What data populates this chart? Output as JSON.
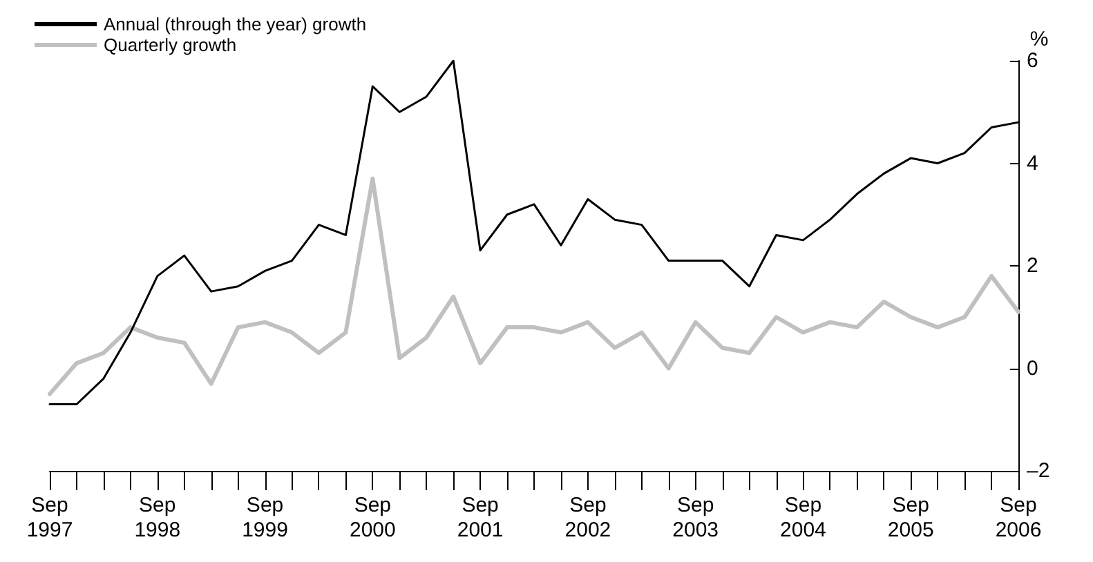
{
  "chart_data": {
    "type": "line",
    "ylabel": "%",
    "categories": [
      "Sep\n1997",
      null,
      null,
      null,
      "Sep\n1998",
      null,
      null,
      null,
      "Sep\n1999",
      null,
      null,
      null,
      "Sep\n2000",
      null,
      null,
      null,
      "Sep\n2001",
      null,
      null,
      null,
      "Sep\n2002",
      null,
      null,
      null,
      "Sep\n2003",
      null,
      null,
      null,
      "Sep\n2004",
      null,
      null,
      null,
      "Sep\n2005",
      null,
      null,
      null,
      "Sep\n2006"
    ],
    "series": [
      {
        "name": "Annual (through the year) growth",
        "color": "#000000",
        "values": [
          -0.7,
          -0.7,
          -0.2,
          0.7,
          1.8,
          2.2,
          1.5,
          1.6,
          1.9,
          2.1,
          2.8,
          2.6,
          5.5,
          5.0,
          5.3,
          6.0,
          2.3,
          3.0,
          3.2,
          2.4,
          3.3,
          2.9,
          2.8,
          2.1,
          2.1,
          2.1,
          1.6,
          2.6,
          2.5,
          2.9,
          3.4,
          3.8,
          4.1,
          4.0,
          4.2,
          4.7,
          4.8
        ]
      },
      {
        "name": "Quarterly growth",
        "color": "#c0c0c0",
        "values": [
          -0.5,
          0.1,
          0.3,
          0.8,
          0.6,
          0.5,
          -0.3,
          0.8,
          0.9,
          0.7,
          0.3,
          0.7,
          3.7,
          0.2,
          0.6,
          1.4,
          0.1,
          0.8,
          0.8,
          0.7,
          0.9,
          0.4,
          0.7,
          0.0,
          0.9,
          0.4,
          0.3,
          1.0,
          0.7,
          0.9,
          0.8,
          1.3,
          1.0,
          0.8,
          1.0,
          1.8,
          1.1
        ]
      }
    ],
    "ylim": [
      -2,
      6
    ],
    "yticks": [
      {
        "value": -2,
        "label": "–2"
      },
      0,
      2,
      4,
      6
    ],
    "grid": false,
    "legend": "top left",
    "marker": "none",
    "line_style": "solid"
  }
}
